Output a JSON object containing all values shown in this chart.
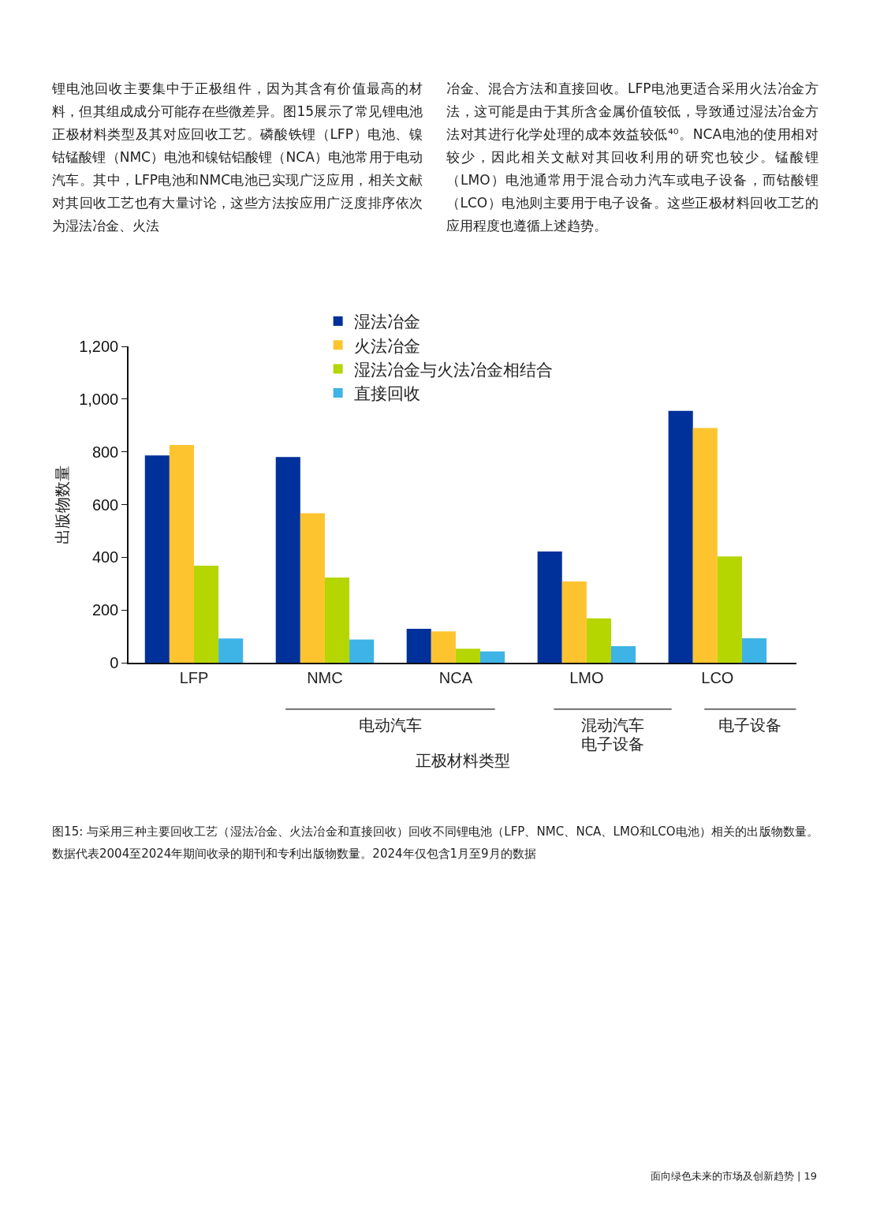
{
  "chart_data": {
    "type": "bar",
    "xlabel": "正极材料类型",
    "ylabel": "出版物数量",
    "categories": [
      "LFP",
      "NMC",
      "NCA",
      "LMO",
      "LCO"
    ],
    "series": [
      {
        "name": "湿法冶金",
        "color": "#00309a",
        "values": [
          786,
          780,
          129,
          422,
          955
        ]
      },
      {
        "name": "火法冶金",
        "color": "#fdc42f",
        "values": [
          826,
          567,
          119,
          308,
          890
        ]
      },
      {
        "name": "湿法冶金与火法冶金相结合",
        "color": "#b5d600",
        "values": [
          368,
          323,
          53,
          168,
          403
        ]
      },
      {
        "name": "直接回收",
        "color": "#3db4e5",
        "values": [
          92,
          88,
          43,
          63,
          93
        ]
      }
    ],
    "ylim": [
      0,
      1200
    ],
    "yticks": [
      0,
      {
        "value": 200,
        "label": "200"
      },
      {
        "value": 400,
        "label": "400"
      },
      {
        "value": 600,
        "label": "600"
      },
      {
        "value": 800,
        "label": "800"
      },
      {
        "value": 1000,
        "label": "1,000"
      },
      {
        "value": 1200,
        "label": "1,200"
      }
    ],
    "grid": false,
    "legend": "top",
    "annotations": [
      "电动汽车",
      "混动汽车",
      "电子设备",
      "电子设备",
      "锂电池回收主要集中于正极组件，因为其含有价值最高的材料，但其组成成分可能存在些微差异。图15展示了常见锂电池正极材料类型及其对应回收工艺。磷酸铁锂（LFP）电池、镍钴锰酸锂（NMC）电池和镍钴铝酸锂（NCA）电池常用于电动汽车。其中，LFP电池和NMC电池已实现广泛应用，相关文献对其回收工艺也有大量讨论，这些方法按应用广泛度排序依次为湿法冶金、火法",
      "冶金、混合方法和直接回收。LFP电池更适合采用火法冶金方法，这可能是由于其所含金属价值较低，导致通过湿法冶金方法对其进行化学处理的成本效益较低⁴⁰。NCA电池的使用相对较少，因此相关文献对其回收利用的研究也较少。锰酸锂（LMO）电池通常用于混合动力汽车或电子设备，而钴酸锂（LCO）电池则主要用于电子设备。这些正极材料回收工艺的应用程度也遵循上述趋势。",
      "图15: 与采用三种主要回收工艺（湿法冶金、火法冶金和直接回收）回收不同锂电池（LFP、NMC、NCA、LMO和LCO电池）相关的出版物数量。数据代表2004至2024年期间收录的期刊和专利出版物数量。2024年仅包含1月至9月的数据",
      "面向绿色未来的市场及创新趋势 | 19"
    ]
  }
}
